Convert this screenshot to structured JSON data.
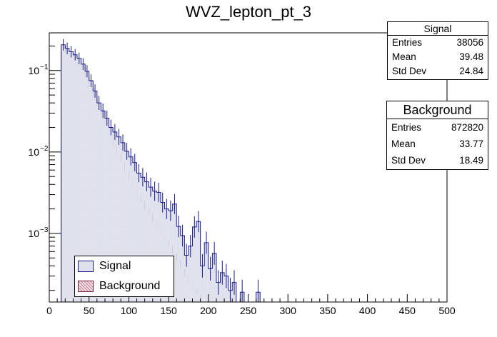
{
  "chart_data": {
    "type": "bar",
    "title": "WVZ_lepton_pt_3",
    "xlabel": "",
    "ylabel": "",
    "xlim": [
      0,
      500
    ],
    "ylim": [
      0.000144,
      0.29
    ],
    "yscale": "log",
    "bin_width": 5,
    "x_ticks": [
      0,
      50,
      100,
      150,
      200,
      250,
      300,
      350,
      400,
      450,
      500
    ],
    "y_ticks": [
      {
        "value": 0.1,
        "label_base": "10",
        "label_exp": "−1"
      },
      {
        "value": 0.01,
        "label_base": "10",
        "label_exp": "−2"
      },
      {
        "value": 0.001,
        "label_base": "10",
        "label_exp": "−3"
      }
    ],
    "grid": false,
    "legend_position": "bottom-left",
    "series": [
      {
        "name": "Background",
        "color": "#7a2240",
        "fill": "hatched-pink",
        "bin_low_edges": [
          15,
          20,
          25,
          30,
          35,
          40,
          45,
          50,
          55,
          60,
          65,
          70,
          75,
          80,
          85,
          90,
          95,
          100,
          105,
          110,
          115,
          120,
          125,
          130,
          135,
          140,
          145,
          150,
          155,
          160,
          165,
          170,
          175,
          180,
          185
        ],
        "values": [
          0.198,
          0.163,
          0.153,
          0.14,
          0.127,
          0.108,
          0.083,
          0.063,
          0.048,
          0.037,
          0.029,
          0.0215,
          0.016,
          0.0122,
          0.0096,
          0.0074,
          0.0058,
          0.0045,
          0.0037,
          0.003,
          0.0025,
          0.002,
          0.0017,
          0.0014,
          0.0012,
          0.001,
          0.00082,
          0.0007,
          0.00057,
          0.00047,
          0.00037,
          0.0003,
          0.00025,
          0.0002,
          0.00018
        ]
      },
      {
        "name": "Signal",
        "color": "#1a1a8c",
        "fill": "#dfe2ec",
        "bin_low_edges": [
          15,
          20,
          25,
          30,
          35,
          40,
          45,
          50,
          55,
          60,
          65,
          70,
          75,
          80,
          85,
          90,
          95,
          100,
          105,
          110,
          115,
          120,
          125,
          130,
          135,
          140,
          145,
          150,
          155,
          160,
          165,
          170,
          175,
          180,
          185,
          190,
          195,
          200,
          205,
          210,
          215,
          220,
          225,
          230,
          240,
          260
        ],
        "values": [
          0.207,
          0.187,
          0.17,
          0.156,
          0.141,
          0.12,
          0.098,
          0.075,
          0.056,
          0.04,
          0.032,
          0.026,
          0.02,
          0.0176,
          0.0153,
          0.013,
          0.0102,
          0.0087,
          0.0074,
          0.0055,
          0.0049,
          0.0043,
          0.0037,
          0.0033,
          0.0032,
          0.0024,
          0.002,
          0.0019,
          0.0023,
          0.00122,
          0.00094,
          0.00054,
          0.0007,
          0.0012,
          0.0014,
          0.0004,
          0.00077,
          0.00037,
          0.00057,
          0.00025,
          0.00033,
          0.0003,
          0.0002,
          0.00025,
          0.00019,
          0.00019
        ]
      }
    ]
  },
  "stats": {
    "signal": {
      "title": "Signal",
      "rows": [
        {
          "label": "Entries",
          "value": "38056"
        },
        {
          "label": "Mean",
          "value": "39.48"
        },
        {
          "label": "Std Dev",
          "value": "24.84"
        }
      ]
    },
    "background": {
      "title": "Background",
      "rows": [
        {
          "label": "Entries",
          "value": "872820"
        },
        {
          "label": "Mean",
          "value": "33.77"
        },
        {
          "label": "Std Dev",
          "value": "18.49"
        }
      ]
    }
  },
  "legend": {
    "entries": [
      {
        "label": "Signal"
      },
      {
        "label": "Background"
      }
    ]
  }
}
